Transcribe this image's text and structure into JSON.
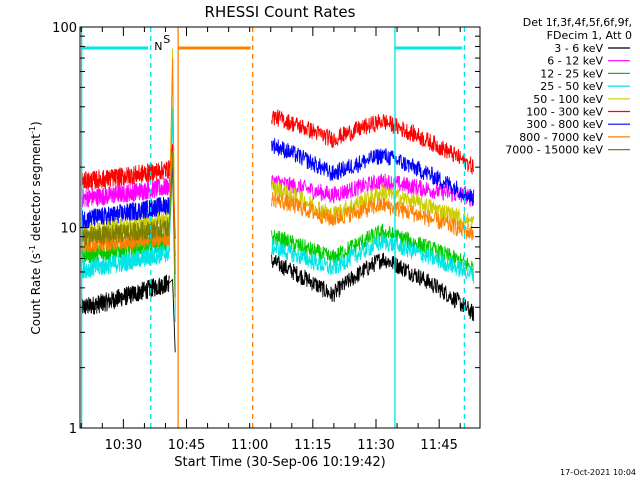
{
  "chart_data": {
    "type": "line",
    "title": "RHESSI Count Rates",
    "xlabel": "Start Time (30-Sep-06 10:19:42)",
    "ylabel_main": "Count Rate (s",
    "ylabel_sup1": "-1",
    "ylabel_mid": " detector segment",
    "ylabel_sup2": "-1",
    "ylabel_end": ")",
    "y_scale": "log",
    "ylim": [
      1,
      100
    ],
    "y_ticks": [
      {
        "value": 1,
        "label": "1"
      },
      {
        "value": 10,
        "label": "10"
      },
      {
        "value": 100,
        "label": "100"
      }
    ],
    "x_range_minutes": [
      0,
      95
    ],
    "x_ticks": [
      {
        "minute": 10.3,
        "label": "10:30"
      },
      {
        "minute": 25.3,
        "label": "10:45"
      },
      {
        "minute": 40.3,
        "label": "11:00"
      },
      {
        "minute": 55.3,
        "label": "11:15"
      },
      {
        "minute": 70.3,
        "label": "11:30"
      },
      {
        "minute": 85.3,
        "label": "11:45"
      }
    ],
    "legend_header": [
      "Det 1f,3f,4f,5f,6f,9f,",
      "FDecim 1, Att 0"
    ],
    "legend_placement": "right",
    "series": [
      {
        "name": "3 - 6 keV",
        "color": "#000000",
        "a": [
          4.0,
          5.3
        ],
        "b": [
          6.8,
          4.6,
          7.0,
          3.7
        ]
      },
      {
        "name": "6 - 12 keV",
        "color": "#ff00ff",
        "a": [
          14.0,
          16.0
        ],
        "b": [
          17.0,
          14.5,
          17.0,
          14.0
        ]
      },
      {
        "name": "12 - 25 keV",
        "color": "#00cc00",
        "a": [
          7.3,
          8.5
        ],
        "b": [
          9.0,
          7.0,
          9.5,
          6.3
        ]
      },
      {
        "name": "25 - 50 keV",
        "color": "#00e5e5",
        "a": [
          6.2,
          7.5
        ],
        "b": [
          8.0,
          6.2,
          8.5,
          5.8
        ]
      },
      {
        "name": "50 - 100 keV",
        "color": "#cccc00",
        "a": [
          9.5,
          11.0
        ],
        "b": [
          16.0,
          11.5,
          15.0,
          10.5
        ]
      },
      {
        "name": "100 - 300 keV",
        "color": "#ff0000",
        "a": [
          17.0,
          19.5
        ],
        "b": [
          36.0,
          27.5,
          34.0,
          20.0
        ]
      },
      {
        "name": "300 - 800 keV",
        "color": "#0000ff",
        "a": [
          11.0,
          13.0
        ],
        "b": [
          26.0,
          18.5,
          23.0,
          14.0
        ]
      },
      {
        "name": "800 - 7000 keV",
        "color": "#ff8000",
        "a": [
          8.3,
          9.0
        ],
        "b": [
          14.0,
          11.0,
          13.0,
          9.3
        ]
      },
      {
        "name": "7000 - 15000 keV",
        "color": "#808000",
        "a": [
          9.0,
          10.0
        ],
        "b": []
      }
    ],
    "annotations": [
      {
        "label": "S",
        "color": "#ff8000"
      },
      {
        "label": "N",
        "color": "#00e5e5"
      }
    ],
    "timestamp": "17-Oct-2021 10:04"
  }
}
